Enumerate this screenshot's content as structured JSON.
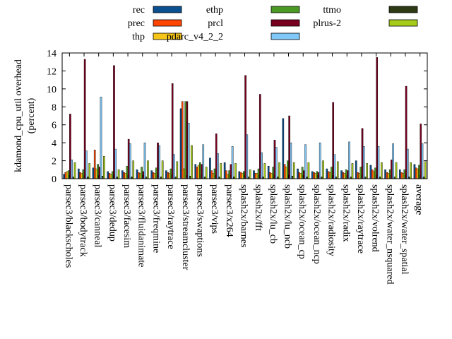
{
  "chart_data": {
    "type": "bar",
    "ylabel_lines": [
      "kdamond_cpu_util overhead",
      "(percent)"
    ],
    "ylim": [
      0,
      14
    ],
    "yticks": [
      0,
      2,
      4,
      6,
      8,
      10,
      12,
      14
    ],
    "legend_placement": "top",
    "categories": [
      "parsec3/blackscholes",
      "parsec3/bodytrack",
      "parsec3/canneal",
      "parsec3/dedup",
      "parsec3/facesim",
      "parsec3/fluidanimate",
      "parsec3/freqmine",
      "parsec3/raytrace",
      "parsec3/streamcluster",
      "parsec3/swaptions",
      "parsec3/vips",
      "parsec3/x264",
      "splash2x/barnes",
      "splash2x/fft",
      "splash2x/lu_cb",
      "splash2x/lu_ncb",
      "splash2x/ocean_cp",
      "splash2x/ocean_ncp",
      "splash2x/radiosity",
      "splash2x/radix",
      "splash2x/raytrace",
      "splash2x/volrend",
      "splash2x/water_nsquared",
      "splash2x/water_spatial",
      "average"
    ],
    "series": [
      {
        "name": "rec",
        "color": "#0a4f8f",
        "values": [
          0.5,
          1.1,
          1.2,
          0.8,
          0.9,
          1.0,
          0.9,
          0.9,
          7.8,
          1.6,
          2.3,
          1.8,
          0.8,
          0.9,
          1.4,
          6.7,
          1.1,
          0.8,
          1.1,
          0.9,
          2.0,
          1.5,
          1.0,
          1.0,
          1.6
        ]
      },
      {
        "name": "prec",
        "color": "#ff4500",
        "values": [
          0.7,
          0.7,
          3.2,
          0.6,
          0.7,
          0.7,
          0.7,
          0.7,
          8.6,
          1.3,
          0.9,
          0.9,
          0.7,
          0.6,
          0.7,
          1.6,
          0.7,
          0.7,
          0.8,
          0.7,
          0.7,
          1.0,
          0.7,
          0.7,
          1.2
        ]
      },
      {
        "name": "thp",
        "color": "#f5c518",
        "values": [
          0.8,
          0.6,
          1.1,
          0.5,
          0.6,
          0.6,
          0.6,
          0.6,
          1.1,
          1.5,
          0.6,
          0.5,
          0.6,
          0.6,
          0.6,
          1.3,
          0.6,
          0.6,
          0.7,
          0.6,
          0.6,
          0.8,
          0.6,
          0.6,
          1.1
        ]
      },
      {
        "name": "ethp",
        "color": "#4a9a24",
        "values": [
          0.9,
          1.0,
          1.6,
          0.8,
          1.4,
          1.3,
          1.2,
          1.1,
          8.6,
          1.8,
          1.1,
          0.9,
          0.8,
          1.1,
          1.3,
          2.0,
          1.3,
          0.8,
          1.3,
          1.0,
          1.3,
          1.2,
          1.0,
          1.0,
          1.5
        ]
      },
      {
        "name": "prcl",
        "color": "#7a0020",
        "values": [
          7.2,
          13.3,
          1.3,
          12.6,
          4.4,
          0.8,
          4.0,
          10.6,
          8.6,
          1.6,
          5.0,
          1.6,
          11.5,
          9.4,
          4.3,
          7.0,
          0.9,
          0.7,
          8.5,
          0.9,
          5.6,
          13.5,
          2.1,
          10.3,
          6.1
        ]
      },
      {
        "name": "pdarc_v4_2_2",
        "color": "#7fc8f8",
        "values": [
          2.1,
          3.1,
          9.1,
          3.3,
          3.9,
          4.0,
          3.7,
          2.7,
          6.2,
          3.8,
          2.8,
          3.6,
          4.9,
          2.9,
          3.5,
          4.0,
          3.8,
          4.0,
          2.7,
          4.1,
          3.6,
          3.6,
          3.9,
          3.3,
          3.9
        ]
      },
      {
        "name": "ttmo",
        "color": "#2e3a14",
        "values": [
          0.2,
          0.2,
          0.3,
          0.2,
          0.2,
          0.2,
          0.2,
          0.2,
          0.3,
          0.2,
          0.2,
          0.2,
          0.2,
          0.2,
          0.2,
          0.3,
          0.2,
          0.2,
          0.2,
          0.2,
          0.2,
          0.2,
          0.2,
          0.2,
          0.2
        ]
      },
      {
        "name": "plrus-2",
        "color": "#a6cc1a",
        "values": [
          1.8,
          1.7,
          2.5,
          1.0,
          2.0,
          2.0,
          2.0,
          1.9,
          3.7,
          1.3,
          1.7,
          1.7,
          1.0,
          1.7,
          1.8,
          1.8,
          1.8,
          2.0,
          1.9,
          1.7,
          1.7,
          1.8,
          1.8,
          1.8,
          1.9
        ]
      }
    ]
  }
}
